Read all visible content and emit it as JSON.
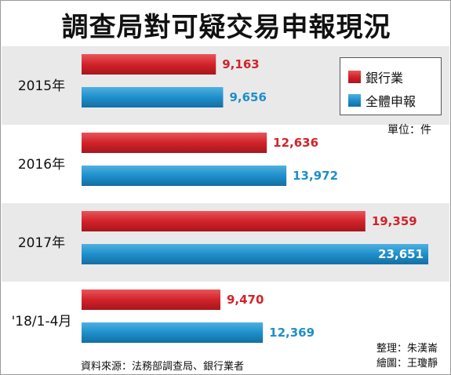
{
  "title": "調查局對可疑交易申報現況",
  "unit": "單位：件",
  "source": "資料來源：法務部調查局、銀行業者",
  "credits": [
    "整理：朱漢崙",
    "繪圖：王瓊靜"
  ],
  "colors": {
    "bank": "#d2232a",
    "total": "#1e8fcb",
    "band": "#e9e9e9"
  },
  "chart_data": {
    "type": "bar",
    "orientation": "horizontal",
    "title": "調查局對可疑交易申報現況",
    "categories": [
      "2015年",
      "2016年",
      "2017年",
      "'18/1-4月"
    ],
    "series": [
      {
        "name": "銀行業",
        "values": [
          9163,
          12636,
          19359,
          9470
        ]
      },
      {
        "name": "全體申報",
        "values": [
          9656,
          13972,
          23651,
          12369
        ]
      }
    ],
    "value_labels": [
      [
        "9,163",
        "12,636",
        "19,359",
        "9,470"
      ],
      [
        "9,656",
        "13,972",
        "23,651",
        "12,369"
      ]
    ],
    "unit": "件",
    "legend": "top-right",
    "grid": false
  }
}
